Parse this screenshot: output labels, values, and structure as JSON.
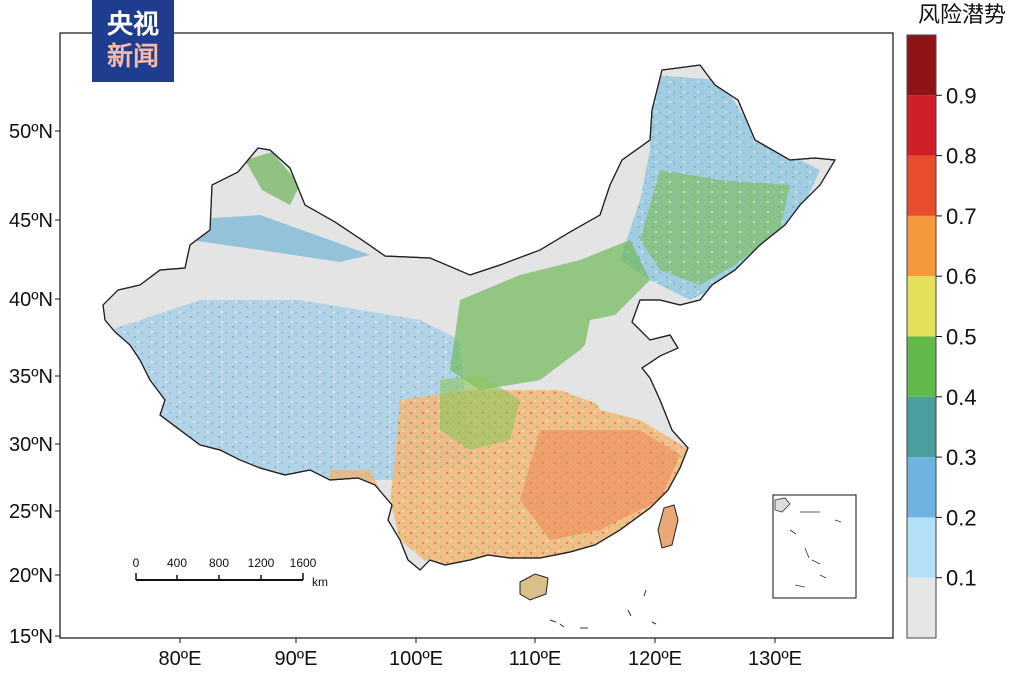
{
  "logo": {
    "line1": "央视",
    "line2": "新闻"
  },
  "legend": {
    "title": "风险潜势",
    "ticks": [
      "0.9",
      "0.8",
      "0.7",
      "0.6",
      "0.5",
      "0.4",
      "0.3",
      "0.2",
      "0.1"
    ],
    "colors": [
      "#e6e6e6",
      "#b3e0f7",
      "#6fb3e0",
      "#4a9e9e",
      "#62b84a",
      "#e5e05a",
      "#f5993e",
      "#e84e2c",
      "#cf1f27",
      "#8f1418"
    ]
  },
  "axes": {
    "lat_labels": [
      "50ºN",
      "45ºN",
      "40ºN",
      "35ºN",
      "30ºN",
      "25ºN",
      "20ºN",
      "15ºN"
    ],
    "lon_labels": [
      "80ºE",
      "90ºE",
      "100ºE",
      "110ºE",
      "120ºE",
      "130ºE"
    ]
  },
  "scalebar": {
    "ticks": [
      "0",
      "400",
      "800",
      "1200",
      "1600"
    ],
    "unit": "km"
  }
}
